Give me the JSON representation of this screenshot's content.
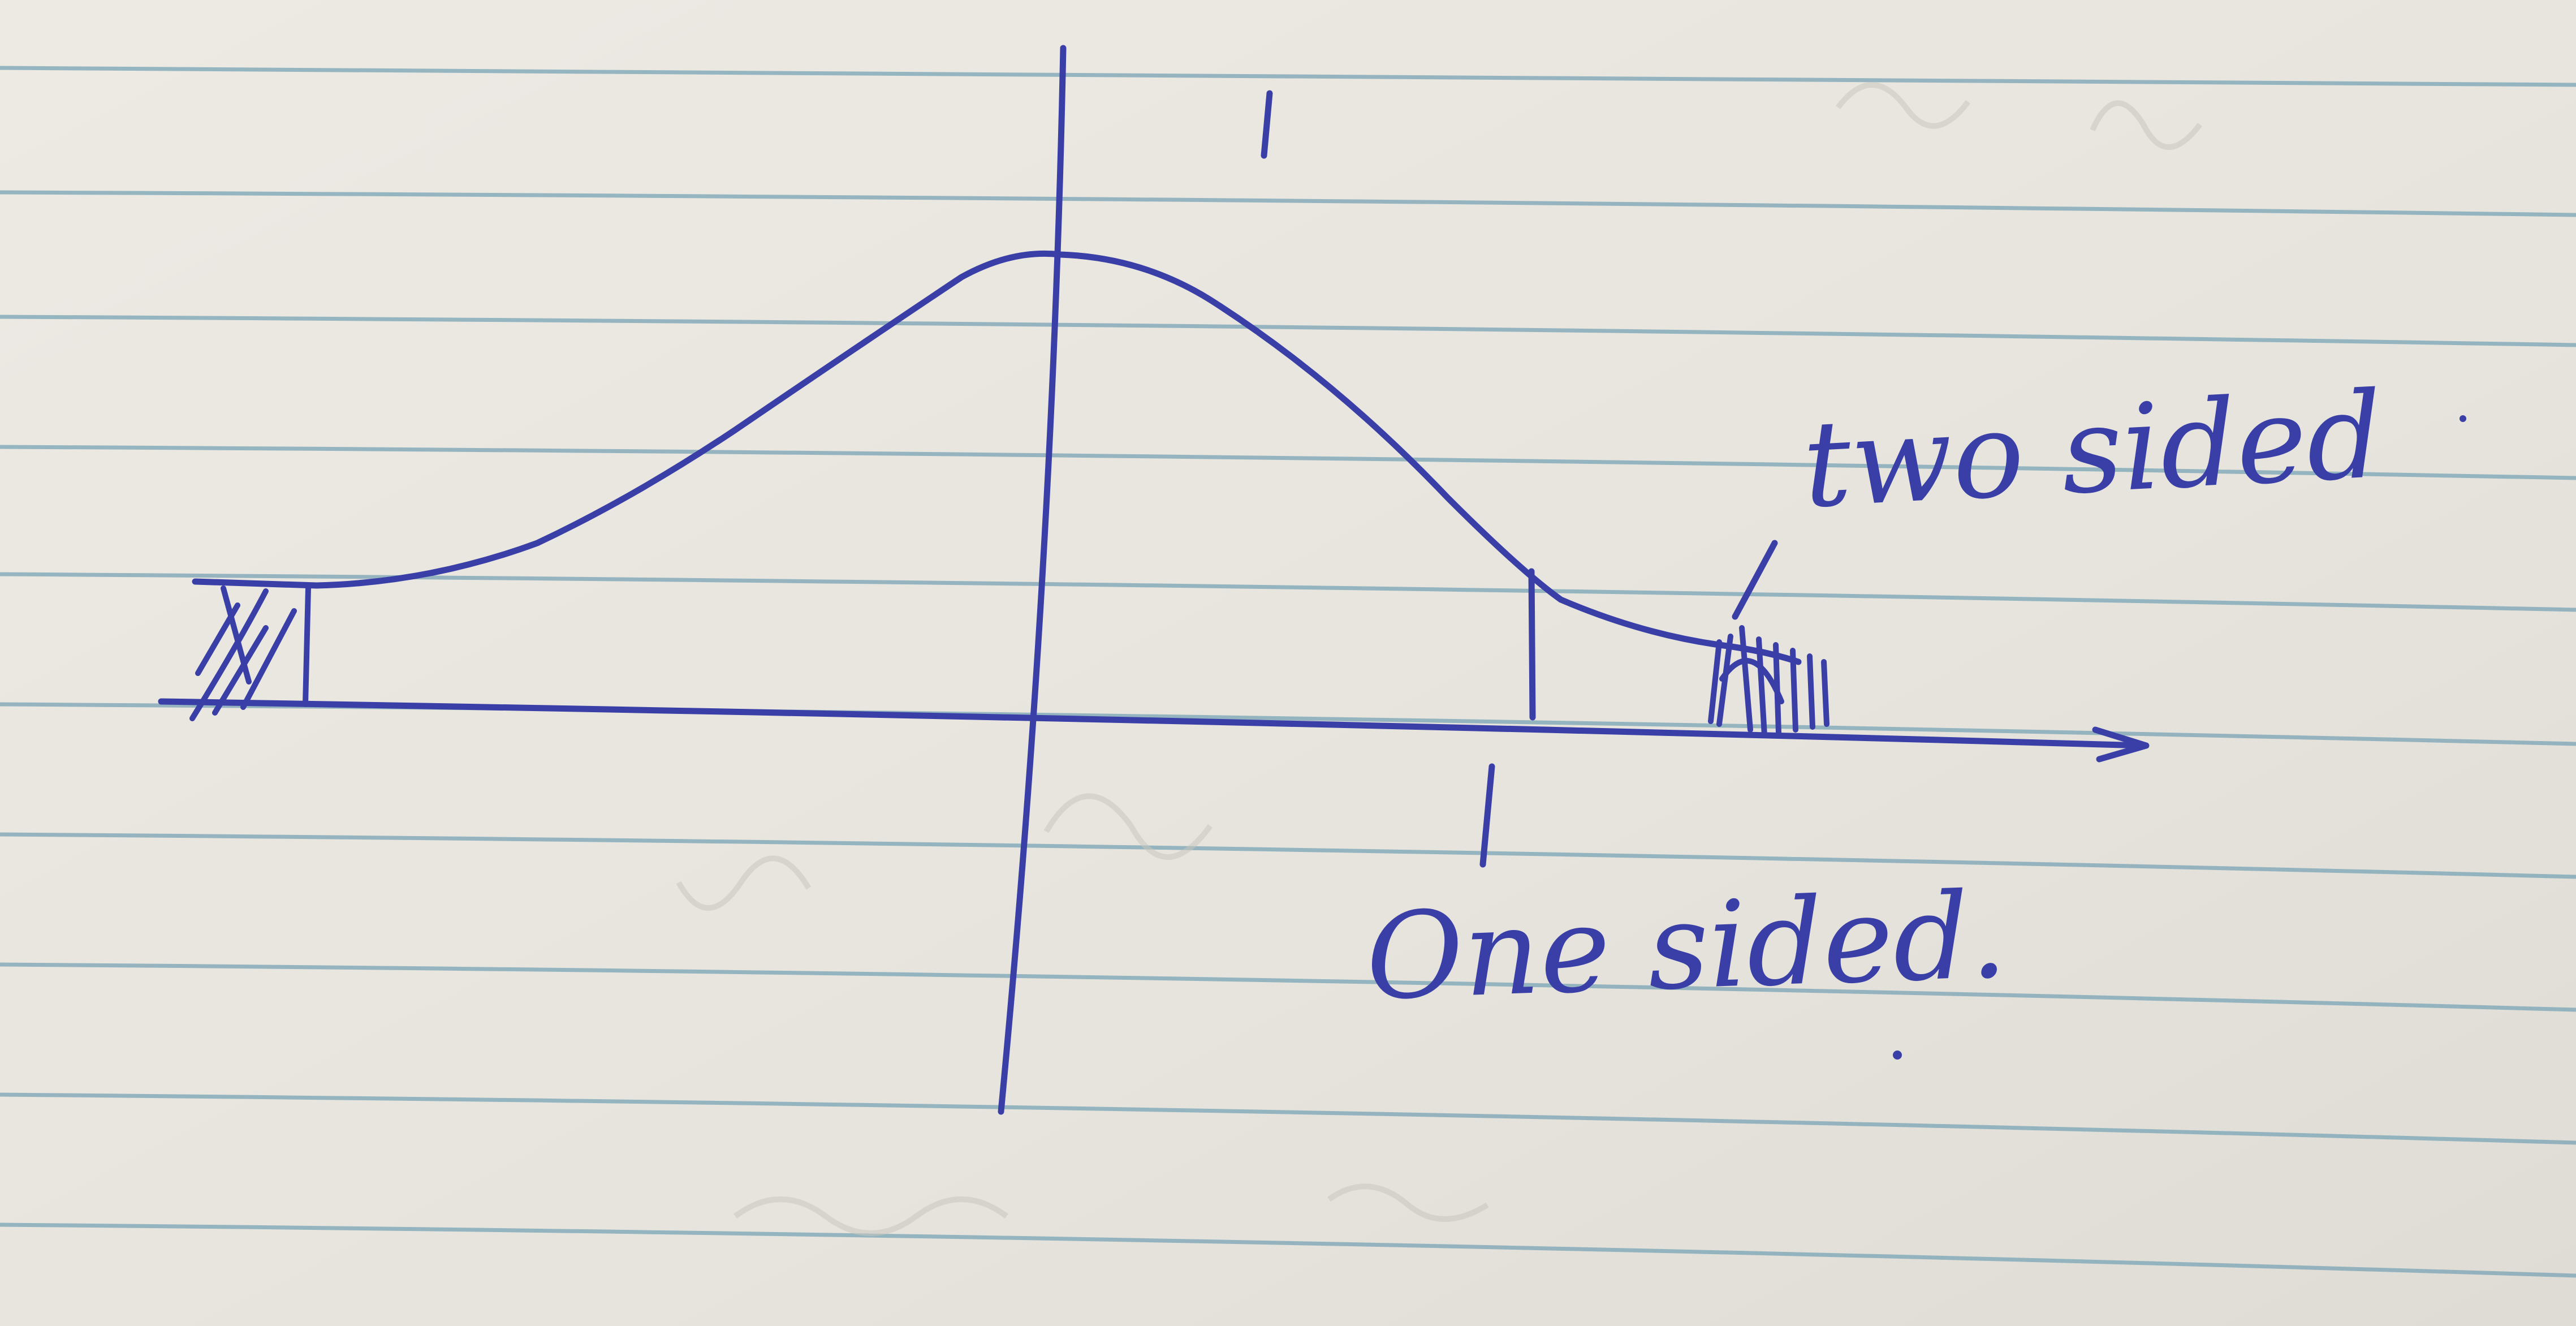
{
  "annotations": {
    "two_sided": "two sided",
    "one_sided": "One sided."
  },
  "colors": {
    "paper": "#e9e7e0",
    "rule_line": "#7fa7b8",
    "ink": "#3a3fa8"
  }
}
